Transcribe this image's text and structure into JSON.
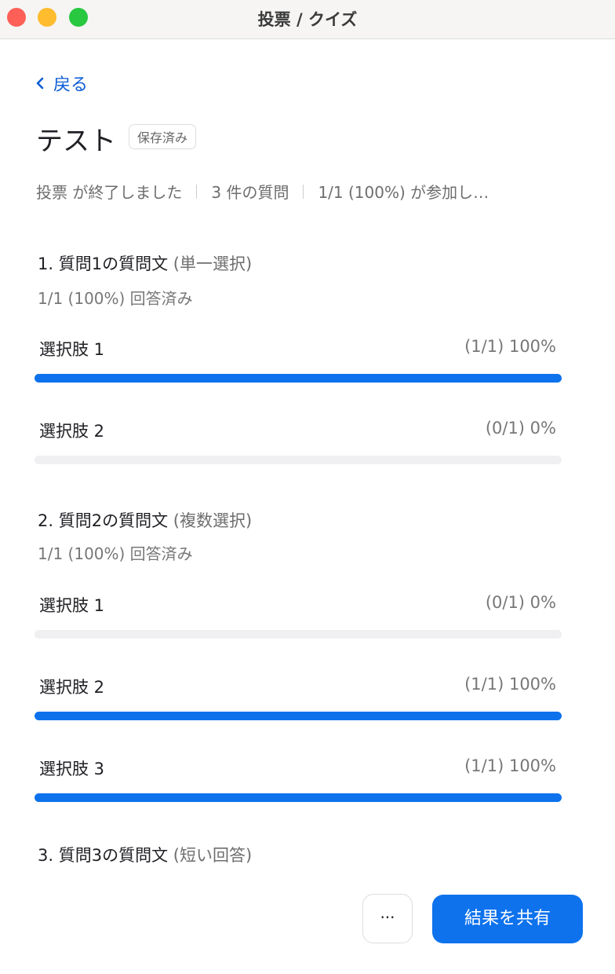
{
  "window": {
    "title": "投票 / クイズ",
    "lights": {
      "close": "#fe5f57",
      "minimize": "#febc2e",
      "zoom": "#28c840"
    }
  },
  "nav": {
    "back_label": "戻る",
    "back_icon": "chevron-left-icon"
  },
  "header": {
    "title": "テスト",
    "badge": "保存済み",
    "status": "投票 が終了しました",
    "question_count": "3 件の質問",
    "participation": "1/1 (100%) が参加し…"
  },
  "accent": "#0e72ed",
  "questions": [
    {
      "title": "1. 質問1の質問文",
      "type": "(単一選択)",
      "answered": "1/1 (100%) 回答済み",
      "options": [
        {
          "label": "選択肢 1",
          "value": "(1/1) 100%",
          "percent": 100
        },
        {
          "label": "選択肢 2",
          "value": "(0/1) 0%",
          "percent": 0
        }
      ]
    },
    {
      "title": "2. 質問2の質問文",
      "type": "(複数選択)",
      "answered": "1/1 (100%) 回答済み",
      "options": [
        {
          "label": "選択肢 1",
          "value": "(0/1) 0%",
          "percent": 0
        },
        {
          "label": "選択肢 2",
          "value": "(1/1) 100%",
          "percent": 100
        },
        {
          "label": "選択肢 3",
          "value": "(1/1) 100%",
          "percent": 100
        }
      ]
    },
    {
      "title": "3. 質問3の質問文",
      "type": "(短い回答)"
    }
  ],
  "footer": {
    "more_label": "···",
    "share_label": "結果を共有"
  }
}
